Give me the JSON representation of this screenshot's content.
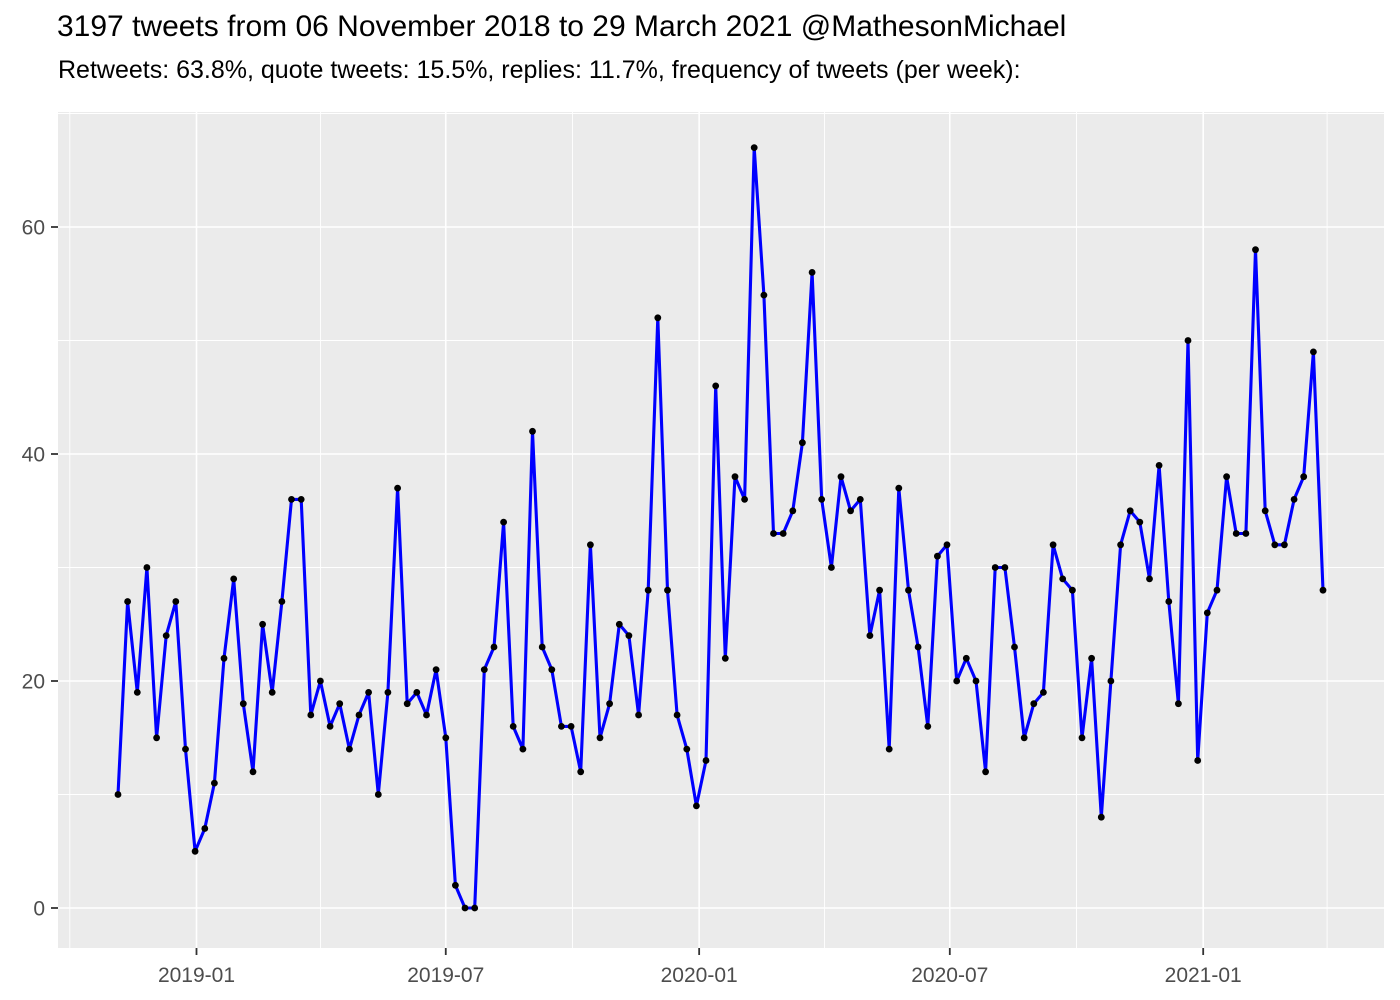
{
  "chart_data": {
    "type": "line",
    "title": "3197 tweets from 06 November 2018 to 29 March 2021 @MathesonMichael",
    "subtitle": "Retweets: 63.8%, quote tweets: 15.5%, replies: 11.7%, frequency of tweets (per week):",
    "x_start": "2018-11-05",
    "x_step_days": 7,
    "values": [
      10,
      27,
      19,
      30,
      15,
      24,
      27,
      14,
      5,
      7,
      11,
      22,
      29,
      18,
      12,
      25,
      19,
      27,
      36,
      36,
      17,
      20,
      16,
      18,
      14,
      17,
      19,
      10,
      19,
      37,
      18,
      19,
      17,
      21,
      15,
      2,
      0,
      0,
      21,
      23,
      34,
      16,
      14,
      42,
      23,
      21,
      16,
      16,
      12,
      32,
      15,
      18,
      25,
      24,
      17,
      28,
      52,
      28,
      17,
      14,
      9,
      13,
      46,
      22,
      38,
      36,
      67,
      54,
      33,
      33,
      35,
      41,
      56,
      36,
      30,
      38,
      35,
      36,
      24,
      28,
      14,
      37,
      28,
      23,
      16,
      31,
      32,
      20,
      22,
      20,
      12,
      30,
      30,
      23,
      15,
      18,
      19,
      32,
      29,
      28,
      15,
      22,
      8,
      20,
      32,
      35,
      34,
      29,
      39,
      27,
      18,
      50,
      13,
      26,
      28,
      38,
      33,
      33,
      58,
      35,
      32,
      32,
      36,
      38,
      49,
      28
    ],
    "x_tick_labels": [
      "2019-01",
      "2019-07",
      "2020-01",
      "2020-07",
      "2021-01"
    ],
    "y_ticks": [
      0,
      20,
      40,
      60
    ],
    "ylim": [
      0,
      67
    ],
    "grid": "on",
    "legend": "none",
    "colors": {
      "line": "#0000FF",
      "point": "#000000",
      "panel_bg": "#EBEBEB",
      "grid": "#FFFFFF",
      "axis_text": "#4D4D4D",
      "tick_mark": "#333333",
      "title_text": "#000000"
    }
  }
}
